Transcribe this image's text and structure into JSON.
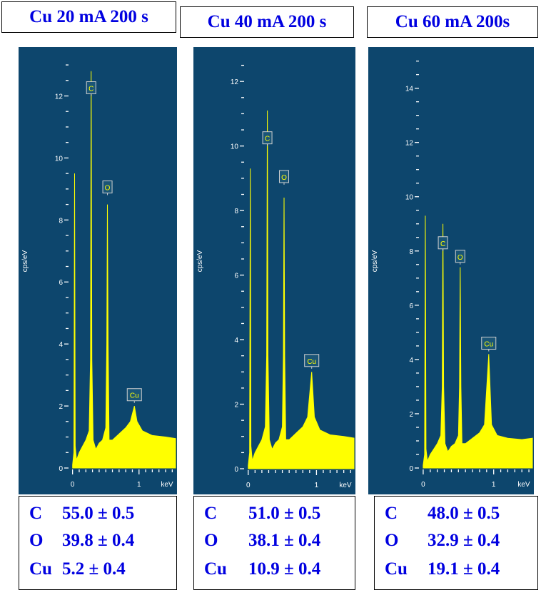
{
  "colors": {
    "background": "#0d466d",
    "spectrum": "#ffff00",
    "axis": "#ffffff",
    "title_text": "#0000e0"
  },
  "chart_data": [
    {
      "type": "area",
      "title": "Cu 20 mA 200 s",
      "ylabel": "cps/eV",
      "xlabel": "keV",
      "xlim": [
        -0.05,
        1.55
      ],
      "ylim": [
        0,
        13.3
      ],
      "yticks": [
        0,
        2,
        4,
        6,
        8,
        10,
        12
      ],
      "xticks": [
        0,
        1
      ],
      "peaks": [
        {
          "label": "",
          "x": 0.03,
          "y": 9.5
        },
        {
          "label": "C",
          "x": 0.28,
          "y": 12.0
        },
        {
          "label": "O",
          "x": 0.525,
          "y": 8.8
        },
        {
          "label": "Cu",
          "x": 0.93,
          "y": 2.1
        }
      ],
      "spectrum_x": [
        0.0,
        0.02,
        0.03,
        0.04,
        0.06,
        0.1,
        0.15,
        0.2,
        0.25,
        0.27,
        0.28,
        0.29,
        0.31,
        0.35,
        0.4,
        0.45,
        0.5,
        0.515,
        0.525,
        0.535,
        0.55,
        0.6,
        0.7,
        0.8,
        0.87,
        0.93,
        0.97,
        1.05,
        1.2,
        1.4,
        1.55
      ],
      "spectrum_y": [
        0.1,
        0.5,
        9.5,
        0.7,
        0.25,
        0.5,
        0.7,
        0.9,
        1.2,
        3.5,
        12.8,
        3.5,
        0.9,
        0.6,
        0.8,
        0.9,
        1.3,
        4.0,
        8.5,
        4.0,
        0.9,
        0.9,
        1.1,
        1.3,
        1.5,
        2.0,
        1.5,
        1.2,
        1.05,
        1.0,
        0.95
      ],
      "composition": [
        {
          "element": "C",
          "value": "55.0 ± 0.5"
        },
        {
          "element": "O",
          "value": "39.8 ± 0.4"
        },
        {
          "element": "Cu",
          "value": "5.2 ± 0.4"
        }
      ]
    },
    {
      "type": "area",
      "title": "Cu 40 mA 200 s",
      "ylabel": "cps/eV",
      "xlabel": "keV",
      "xlim": [
        -0.05,
        1.55
      ],
      "ylim": [
        0,
        12.8
      ],
      "yticks": [
        0,
        2,
        4,
        6,
        8,
        10,
        12
      ],
      "xticks": [
        0,
        1
      ],
      "peaks": [
        {
          "label": "",
          "x": 0.03,
          "y": 9.3
        },
        {
          "label": "C",
          "x": 0.28,
          "y": 10.0
        },
        {
          "label": "O",
          "x": 0.525,
          "y": 8.8
        },
        {
          "label": "Cu",
          "x": 0.93,
          "y": 3.1
        }
      ],
      "spectrum_x": [
        0.0,
        0.02,
        0.03,
        0.04,
        0.06,
        0.1,
        0.15,
        0.2,
        0.25,
        0.27,
        0.28,
        0.29,
        0.31,
        0.35,
        0.4,
        0.45,
        0.5,
        0.515,
        0.525,
        0.535,
        0.55,
        0.6,
        0.7,
        0.8,
        0.87,
        0.93,
        0.97,
        1.05,
        1.2,
        1.4,
        1.55
      ],
      "spectrum_y": [
        0.1,
        0.5,
        9.3,
        0.7,
        0.25,
        0.5,
        0.7,
        0.9,
        1.3,
        3.5,
        11.1,
        3.5,
        0.9,
        0.6,
        0.8,
        0.9,
        1.3,
        3.5,
        8.4,
        3.5,
        0.9,
        0.9,
        1.1,
        1.3,
        1.6,
        3.0,
        1.6,
        1.2,
        1.05,
        1.0,
        0.95
      ],
      "composition": [
        {
          "element": "C",
          "value": "51.0 ± 0.5"
        },
        {
          "element": "O",
          "value": "38.1 ± 0.4"
        },
        {
          "element": "Cu",
          "value": "10.9 ± 0.4"
        }
      ]
    },
    {
      "type": "area",
      "title": "Cu 60 mA 200s",
      "ylabel": "cps/eV",
      "xlabel": "keV",
      "xlim": [
        -0.05,
        1.55
      ],
      "ylim": [
        0,
        15.2
      ],
      "yticks": [
        0,
        2,
        4,
        6,
        8,
        10,
        12,
        14
      ],
      "xticks": [
        0,
        1
      ],
      "peaks": [
        {
          "label": "",
          "x": 0.03,
          "y": 9.3
        },
        {
          "label": "C",
          "x": 0.28,
          "y": 8.0
        },
        {
          "label": "O",
          "x": 0.525,
          "y": 7.5
        },
        {
          "label": "Cu",
          "x": 0.93,
          "y": 4.3
        }
      ],
      "spectrum_x": [
        0.0,
        0.02,
        0.03,
        0.04,
        0.06,
        0.1,
        0.15,
        0.2,
        0.25,
        0.27,
        0.28,
        0.29,
        0.31,
        0.35,
        0.4,
        0.45,
        0.5,
        0.515,
        0.525,
        0.535,
        0.55,
        0.6,
        0.7,
        0.8,
        0.87,
        0.93,
        0.97,
        1.05,
        1.2,
        1.4,
        1.55
      ],
      "spectrum_y": [
        0.1,
        0.5,
        9.3,
        0.7,
        0.25,
        0.5,
        0.7,
        0.9,
        1.2,
        3.0,
        9.0,
        3.0,
        0.9,
        0.6,
        0.8,
        0.9,
        1.2,
        3.0,
        7.4,
        3.0,
        0.9,
        0.9,
        1.1,
        1.3,
        1.6,
        4.2,
        1.6,
        1.2,
        1.1,
        1.05,
        1.1
      ],
      "composition": [
        {
          "element": "C",
          "value": "48.0 ± 0.5"
        },
        {
          "element": "O",
          "value": "32.9 ± 0.4"
        },
        {
          "element": "Cu",
          "value": "19.1 ± 0.4"
        }
      ]
    }
  ]
}
